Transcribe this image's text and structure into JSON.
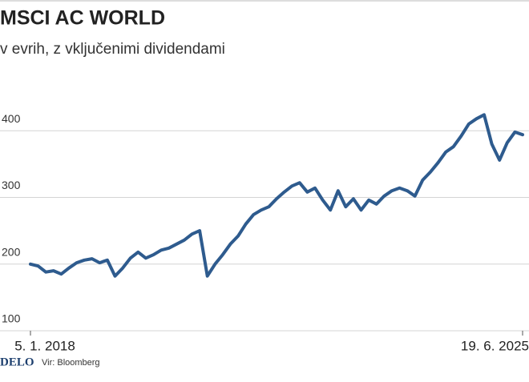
{
  "chart_data": {
    "type": "line",
    "title": "MSCI AC WORLD",
    "subtitle": "v evrih, z vključenimi dividendami",
    "categories": [
      "5. 1. 2018",
      null,
      null,
      null,
      null,
      null,
      null,
      null,
      null,
      null,
      null,
      null,
      null,
      null,
      null,
      null,
      null,
      null,
      null,
      null,
      null,
      null,
      null,
      null,
      null,
      null,
      null,
      null,
      null,
      null,
      null,
      null,
      null,
      null,
      null,
      null,
      null,
      null,
      null,
      null,
      null,
      null,
      null,
      null,
      null,
      null,
      null,
      null,
      null,
      null,
      null,
      null,
      null,
      null,
      null,
      null,
      null,
      null,
      null,
      null,
      null,
      null,
      null,
      null,
      "19. 6. 2025"
    ],
    "values": [
      200,
      197,
      188,
      190,
      185,
      194,
      202,
      206,
      208,
      202,
      206,
      182,
      194,
      209,
      218,
      209,
      214,
      221,
      224,
      230,
      236,
      245,
      250,
      182,
      200,
      214,
      230,
      242,
      260,
      274,
      281,
      286,
      298,
      308,
      317,
      322,
      308,
      314,
      296,
      281,
      310,
      286,
      298,
      281,
      296,
      290,
      302,
      310,
      314,
      310,
      302,
      326,
      338,
      352,
      368,
      376,
      392,
      410,
      418,
      424,
      380,
      356,
      382,
      398,
      394
    ],
    "color": "#2e5b8e",
    "ylim": [
      100,
      500
    ],
    "yticks": [
      100,
      200,
      300,
      400
    ],
    "grid": true,
    "logo": "DELO",
    "source": "Vir: Bloomberg"
  }
}
